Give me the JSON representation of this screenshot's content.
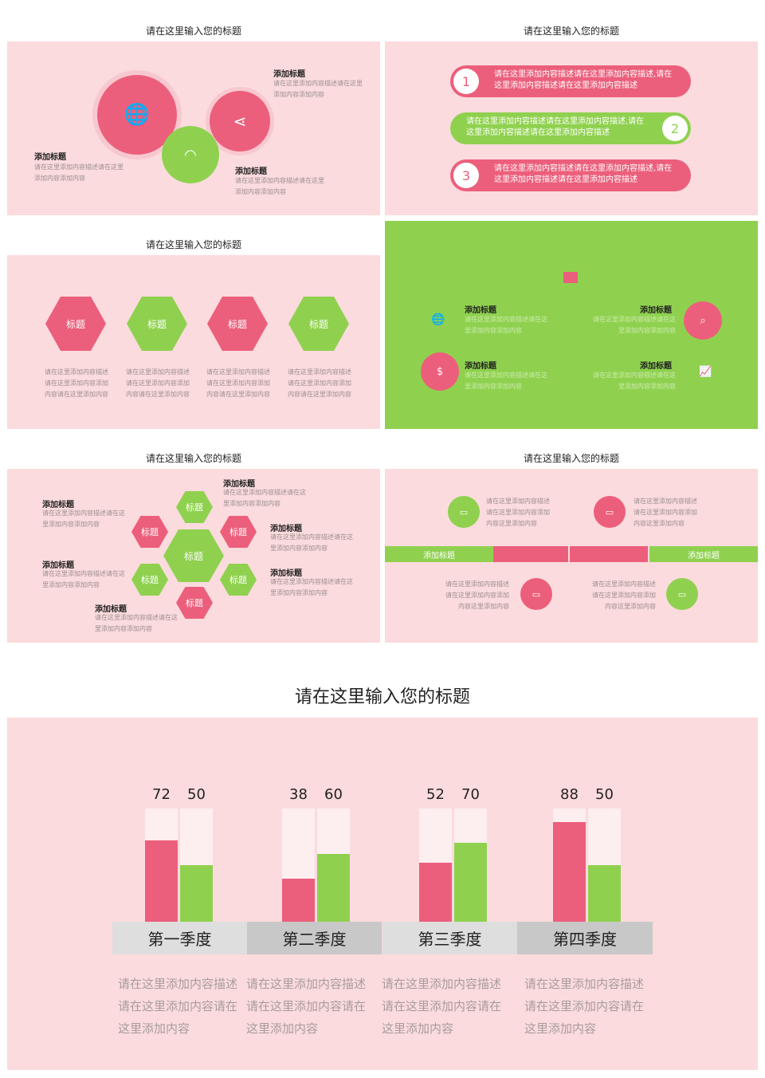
{
  "slides": {
    "s1": {
      "title": "请在这里输入您的标题",
      "items": [
        {
          "heading": "添加标题",
          "text": "请在这里添加内容描述请在这里添加内容添加内容"
        },
        {
          "heading": "添加标题",
          "text": "请在这里添加内容描述请在这里添加内容添加内容"
        },
        {
          "heading": "添加标题",
          "text": "请在这里添加内容描述请在这里添加内容添加内容"
        }
      ]
    },
    "s2": {
      "title": "请在这里输入您的标题",
      "items": [
        {
          "num": "1",
          "text": "请在这里添加内容描述请在这里添加内容描述,请在这里添加内容描述请在这里添加内容描述"
        },
        {
          "num": "2",
          "text": "请在这里添加内容描述请在这里添加内容描述,请在这里添加内容描述请在这里添加内容描述"
        },
        {
          "num": "3",
          "text": "请在这里添加内容描述请在这里添加内容描述,请在这里添加内容描述请在这里添加内容描述"
        }
      ]
    },
    "s3": {
      "title": "请在这里输入您的标题",
      "items": [
        {
          "label": "标题",
          "text": "请在这里添加内容描述请在这里添加内容添加内容请在这里添加内容"
        },
        {
          "label": "标题",
          "text": "请在这里添加内容描述请在这里添加内容添加内容请在这里添加内容"
        },
        {
          "label": "标题",
          "text": "请在这里添加内容描述请在这里添加内容添加内容请在这里添加内容"
        },
        {
          "label": "标题",
          "text": "请在这里添加内容描述请在这里添加内容添加内容请在这里添加内容"
        }
      ]
    },
    "s4": {
      "items": [
        {
          "heading": "添加标题",
          "text": "请在这里添加内容描述请在这里添加内容添加内容"
        },
        {
          "heading": "添加标题",
          "text": "请在这里添加内容描述请在这里添加内容添加内容"
        },
        {
          "heading": "添加标题",
          "text": "请在这里添加内容描述请在这里添加内容添加内容"
        },
        {
          "heading": "添加标题",
          "text": "请在这里添加内容描述请在这里添加内容添加内容"
        }
      ]
    },
    "s5": {
      "title": "请在这里输入您的标题",
      "center": "标题",
      "hex_labels": [
        "标题",
        "标题",
        "标题",
        "标题",
        "标题",
        "标题"
      ],
      "items": [
        {
          "heading": "添加标题",
          "text": "请在这里添加内容描述请在这里添加内容添加内容"
        },
        {
          "heading": "添加标题",
          "text": "请在这里添加内容描述请在这里添加内容添加内容"
        },
        {
          "heading": "添加标题",
          "text": "请在这里添加内容描述请在这里添加内容添加内容"
        },
        {
          "heading": "添加标题",
          "text": "请在这里添加内容描述请在这里添加内容添加内容"
        },
        {
          "heading": "添加标题",
          "text": "请在这里添加内容描述请在这里添加内容添加内容"
        },
        {
          "heading": "添加标题",
          "text": "请在这里添加内容描述请在这里添加内容添加内容"
        }
      ]
    },
    "s6": {
      "title": "请在这里输入您的标题",
      "band_left": "添加标题",
      "band_right": "添加标题",
      "texts": [
        "请在这里添加内容描述请在这里添加内容添加内容这里添加内容",
        "请在这里添加内容描述请在这里添加内容添加内容这里添加内容",
        "请在这里添加内容描述请在这里添加内容添加内容这里添加内容",
        "请在这里添加内容描述请在这里添加内容添加内容这里添加内容"
      ]
    },
    "s7": {
      "title": "请在这里输入您的标题",
      "quarters": [
        {
          "label": "第一季度",
          "desc": "请在这里添加内容描述请在这里添加内容请在这里添加内容"
        },
        {
          "label": "第二季度",
          "desc": "请在这里添加内容描述请在这里添加内容请在这里添加内容"
        },
        {
          "label": "第三季度",
          "desc": "请在这里添加内容描述请在这里添加内容请在这里添加内容"
        },
        {
          "label": "第四季度",
          "desc": "请在这里添加内容描述请在这里添加内容请在这里添加内容"
        }
      ]
    }
  },
  "chart_data": {
    "type": "bar",
    "categories": [
      "第一季度",
      "第二季度",
      "第三季度",
      "第四季度"
    ],
    "series": [
      {
        "values": [
          72,
          38,
          52,
          88
        ],
        "color": "#ec5f7c"
      },
      {
        "values": [
          50,
          60,
          70,
          50
        ],
        "color": "#8fd14f"
      }
    ],
    "ylim": [
      0,
      100
    ]
  },
  "colors": {
    "pink": "#ec5f7c",
    "green": "#8fd14f",
    "bg": "#fbdbdd"
  }
}
